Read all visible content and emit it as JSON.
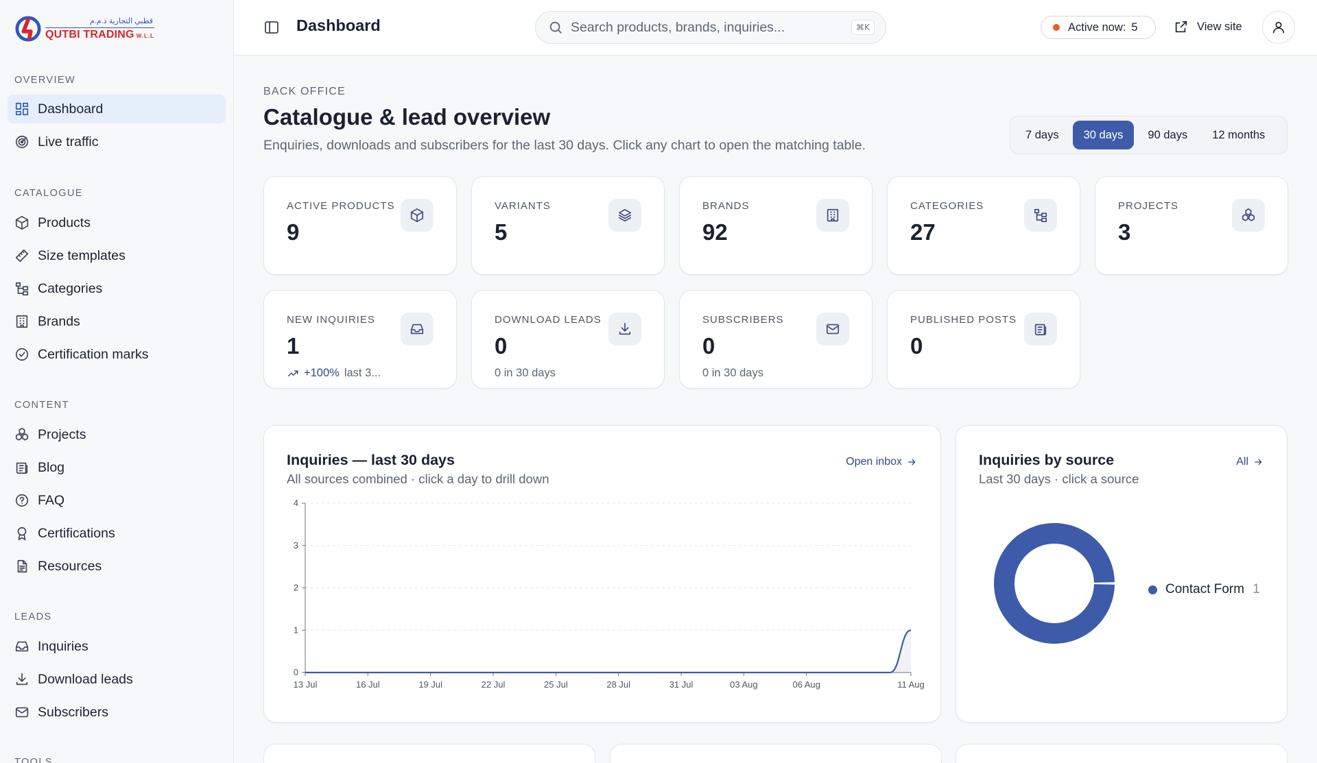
{
  "brand": {
    "name_ar": "قطبي التجارية ذ.م.م",
    "name_en": "QUTBI TRADING",
    "suffix": "W.L.L"
  },
  "nav": {
    "overview": {
      "heading": "OVERVIEW",
      "items": [
        {
          "label": "Dashboard",
          "icon": "dashboard-icon"
        },
        {
          "label": "Live traffic",
          "icon": "radar-icon"
        }
      ]
    },
    "catalogue": {
      "heading": "CATALOGUE",
      "items": [
        {
          "label": "Products",
          "icon": "box-icon"
        },
        {
          "label": "Size templates",
          "icon": "ruler-icon"
        },
        {
          "label": "Categories",
          "icon": "tree-icon"
        },
        {
          "label": "Brands",
          "icon": "building-icon"
        },
        {
          "label": "Certification marks",
          "icon": "check-circle-icon"
        }
      ]
    },
    "content": {
      "heading": "CONTENT",
      "items": [
        {
          "label": "Projects",
          "icon": "cubes-icon"
        },
        {
          "label": "Blog",
          "icon": "newspaper-icon"
        },
        {
          "label": "FAQ",
          "icon": "help-circle-icon"
        },
        {
          "label": "Certifications",
          "icon": "award-icon"
        },
        {
          "label": "Resources",
          "icon": "file-icon"
        }
      ]
    },
    "leads": {
      "heading": "LEADS",
      "items": [
        {
          "label": "Inquiries",
          "icon": "inbox-icon"
        },
        {
          "label": "Download leads",
          "icon": "download-icon"
        },
        {
          "label": "Subscribers",
          "icon": "mail-icon"
        }
      ]
    },
    "tools": {
      "heading": "TOOLS"
    }
  },
  "topbar": {
    "title": "Dashboard",
    "search_placeholder": "Search products, brands, inquiries...",
    "shortcut": "⌘K",
    "active_label": "Active now:",
    "active_count": "5",
    "view_site": "View site"
  },
  "header": {
    "eyebrow": "BACK OFFICE",
    "title": "Catalogue & lead overview",
    "subtitle": "Enquiries, downloads and subscribers for the last 30 days. Click any chart to open the matching table."
  },
  "ranges": {
    "options": [
      "7 days",
      "30 days",
      "90 days",
      "12 months"
    ],
    "selected": "30 days"
  },
  "stats": [
    {
      "label": "ACTIVE PRODUCTS",
      "value": "9",
      "icon": "box-icon"
    },
    {
      "label": "VARIANTS",
      "value": "5",
      "icon": "layers-icon"
    },
    {
      "label": "BRANDS",
      "value": "92",
      "icon": "building-icon"
    },
    {
      "label": "CATEGORIES",
      "value": "27",
      "icon": "tree-icon"
    },
    {
      "label": "PROJECTS",
      "value": "3",
      "icon": "cubes-icon"
    },
    {
      "label": "NEW INQUIRIES",
      "value": "1",
      "icon": "inbox-icon",
      "trend": "+100%",
      "note": "last 3..."
    },
    {
      "label": "DOWNLOAD LEADS",
      "value": "0",
      "icon": "download-icon",
      "note": "0 in 30 days"
    },
    {
      "label": "SUBSCRIBERS",
      "value": "0",
      "icon": "mail-icon",
      "note": "0 in 30 days"
    },
    {
      "label": "PUBLISHED POSTS",
      "value": "0",
      "icon": "newspaper-icon"
    }
  ],
  "inquiries_card": {
    "title": "Inquiries — last 30 days",
    "subtitle": "All sources combined · click a day to drill down",
    "link": "Open inbox"
  },
  "source_card": {
    "title": "Inquiries by source",
    "subtitle": "Last 30 days · click a source",
    "link": "All",
    "legend": [
      {
        "label": "Contact Form",
        "count": "1"
      }
    ]
  },
  "chart_data": [
    {
      "type": "area",
      "title": "Inquiries — last 30 days",
      "x": [
        "13 Jul",
        "14 Jul",
        "15 Jul",
        "16 Jul",
        "17 Jul",
        "18 Jul",
        "19 Jul",
        "20 Jul",
        "21 Jul",
        "22 Jul",
        "23 Jul",
        "24 Jul",
        "25 Jul",
        "26 Jul",
        "27 Jul",
        "28 Jul",
        "29 Jul",
        "30 Jul",
        "31 Jul",
        "01 Aug",
        "02 Aug",
        "03 Aug",
        "04 Aug",
        "05 Aug",
        "06 Aug",
        "07 Aug",
        "08 Aug",
        "09 Aug",
        "10 Aug",
        "11 Aug"
      ],
      "x_ticks": [
        "13 Jul",
        "16 Jul",
        "19 Jul",
        "22 Jul",
        "25 Jul",
        "28 Jul",
        "31 Jul",
        "03 Aug",
        "06 Aug",
        "11 Aug"
      ],
      "values": [
        0,
        0,
        0,
        0,
        0,
        0,
        0,
        0,
        0,
        0,
        0,
        0,
        0,
        0,
        0,
        0,
        0,
        0,
        0,
        0,
        0,
        0,
        0,
        0,
        0,
        0,
        0,
        0,
        0,
        1
      ],
      "ylim": [
        0,
        4
      ],
      "y_ticks": [
        0,
        1,
        2,
        3,
        4
      ],
      "grid": true,
      "color": "#3d5ba9"
    },
    {
      "type": "pie",
      "title": "Inquiries by source",
      "categories": [
        "Contact Form"
      ],
      "values": [
        1
      ],
      "donut": true,
      "legend": "right",
      "color": "#3d5ba9"
    }
  ]
}
